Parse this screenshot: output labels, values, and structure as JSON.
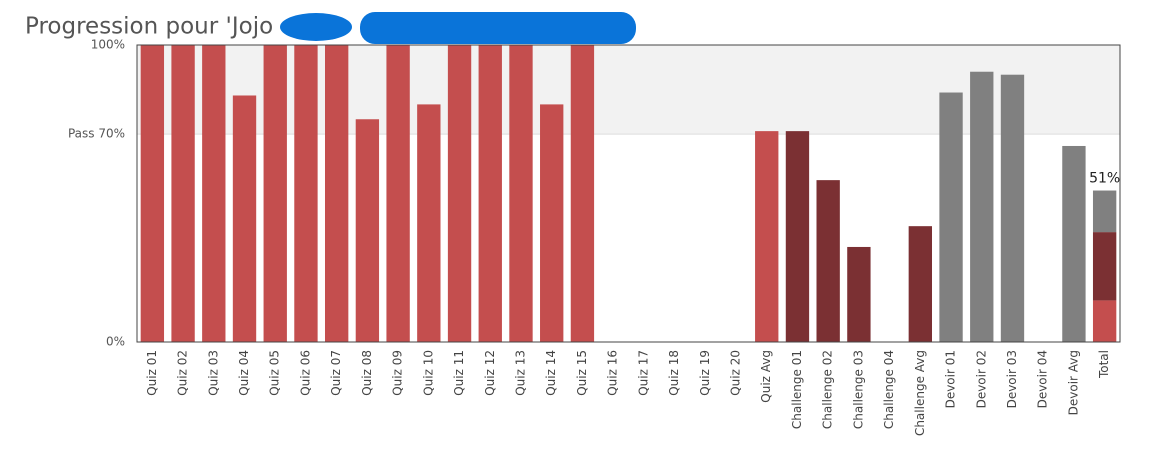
{
  "chart_data": {
    "type": "stacked_bar",
    "title": "Progression pour 'Jojo",
    "categories": [
      "Quiz 01",
      "Quiz 02",
      "Quiz 03",
      "Quiz 04",
      "Quiz 05",
      "Quiz 06",
      "Quiz 07",
      "Quiz 08",
      "Quiz 09",
      "Quiz 10",
      "Quiz 11",
      "Quiz 12",
      "Quiz 13",
      "Quiz 14",
      "Quiz 15",
      "Quiz 16",
      "Quiz 17",
      "Quiz 18",
      "Quiz 19",
      "Quiz 20",
      "Quiz Avg",
      "Challenge 01",
      "Challenge 02",
      "Challenge 03",
      "Challenge 04",
      "Challenge Avg",
      "Devoir 01",
      "Devoir 02",
      "Devoir 03",
      "Devoir 04",
      "Devoir Avg",
      "Total"
    ],
    "series": [
      {
        "color": "#c44e4e",
        "values": [
          100,
          100,
          100,
          83,
          100,
          100,
          100,
          75,
          100,
          80,
          100,
          100,
          100,
          80,
          100,
          0,
          0,
          0,
          0,
          0,
          71,
          null,
          null,
          null,
          null,
          null,
          null,
          null,
          null,
          null,
          null,
          14
        ]
      },
      {
        "color": "#7b3033",
        "values": [
          null,
          null,
          null,
          null,
          null,
          null,
          null,
          null,
          null,
          null,
          null,
          null,
          null,
          null,
          null,
          null,
          null,
          null,
          null,
          null,
          null,
          71,
          54.5,
          32,
          0,
          39,
          null,
          null,
          null,
          null,
          null,
          23
        ]
      },
      {
        "color": "#808080",
        "values": [
          null,
          null,
          null,
          null,
          null,
          null,
          null,
          null,
          null,
          null,
          null,
          null,
          null,
          null,
          null,
          null,
          null,
          null,
          null,
          null,
          null,
          null,
          null,
          null,
          null,
          null,
          84,
          91,
          90,
          0,
          66,
          14
        ]
      }
    ],
    "ylim": [
      0,
      100
    ],
    "yticks": [
      {
        "value": 0,
        "label": "0%"
      },
      {
        "value": 70,
        "label": "Pass 70%"
      },
      {
        "value": 100,
        "label": "100%"
      }
    ],
    "pass_zone": {
      "from": 70,
      "to": 100,
      "color": "#f2f2f2"
    },
    "annotations": [
      {
        "text": "51%",
        "value": 51
      }
    ]
  }
}
